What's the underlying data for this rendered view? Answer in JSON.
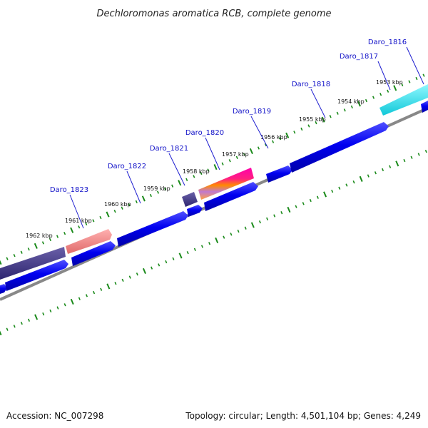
{
  "title": "Dechloromonas aromatica RCB, complete genome",
  "accession": "Accession: NC_007298",
  "summary": "Topology: circular; Length: 4,501,104 bp; Genes: 4,249",
  "colors": {
    "backbone": "#888888",
    "tick": "#1a8a1a",
    "forward_gene": "#0000ee",
    "label": "#1010c8"
  },
  "kbp_labels": [
    "1953 kbp",
    "1954 kbp",
    "1955 kbp",
    "1956 kbp",
    "1957 kbp",
    "1958 kbp",
    "1959 kbp",
    "1960 kbp",
    "1961 kbp",
    "1962 kbp"
  ],
  "gene_labels": [
    "Daro_1816",
    "Daro_1817",
    "Daro_1818",
    "Daro_1819",
    "Daro_1820",
    "Daro_1821",
    "Daro_1822",
    "Daro_1823"
  ]
}
